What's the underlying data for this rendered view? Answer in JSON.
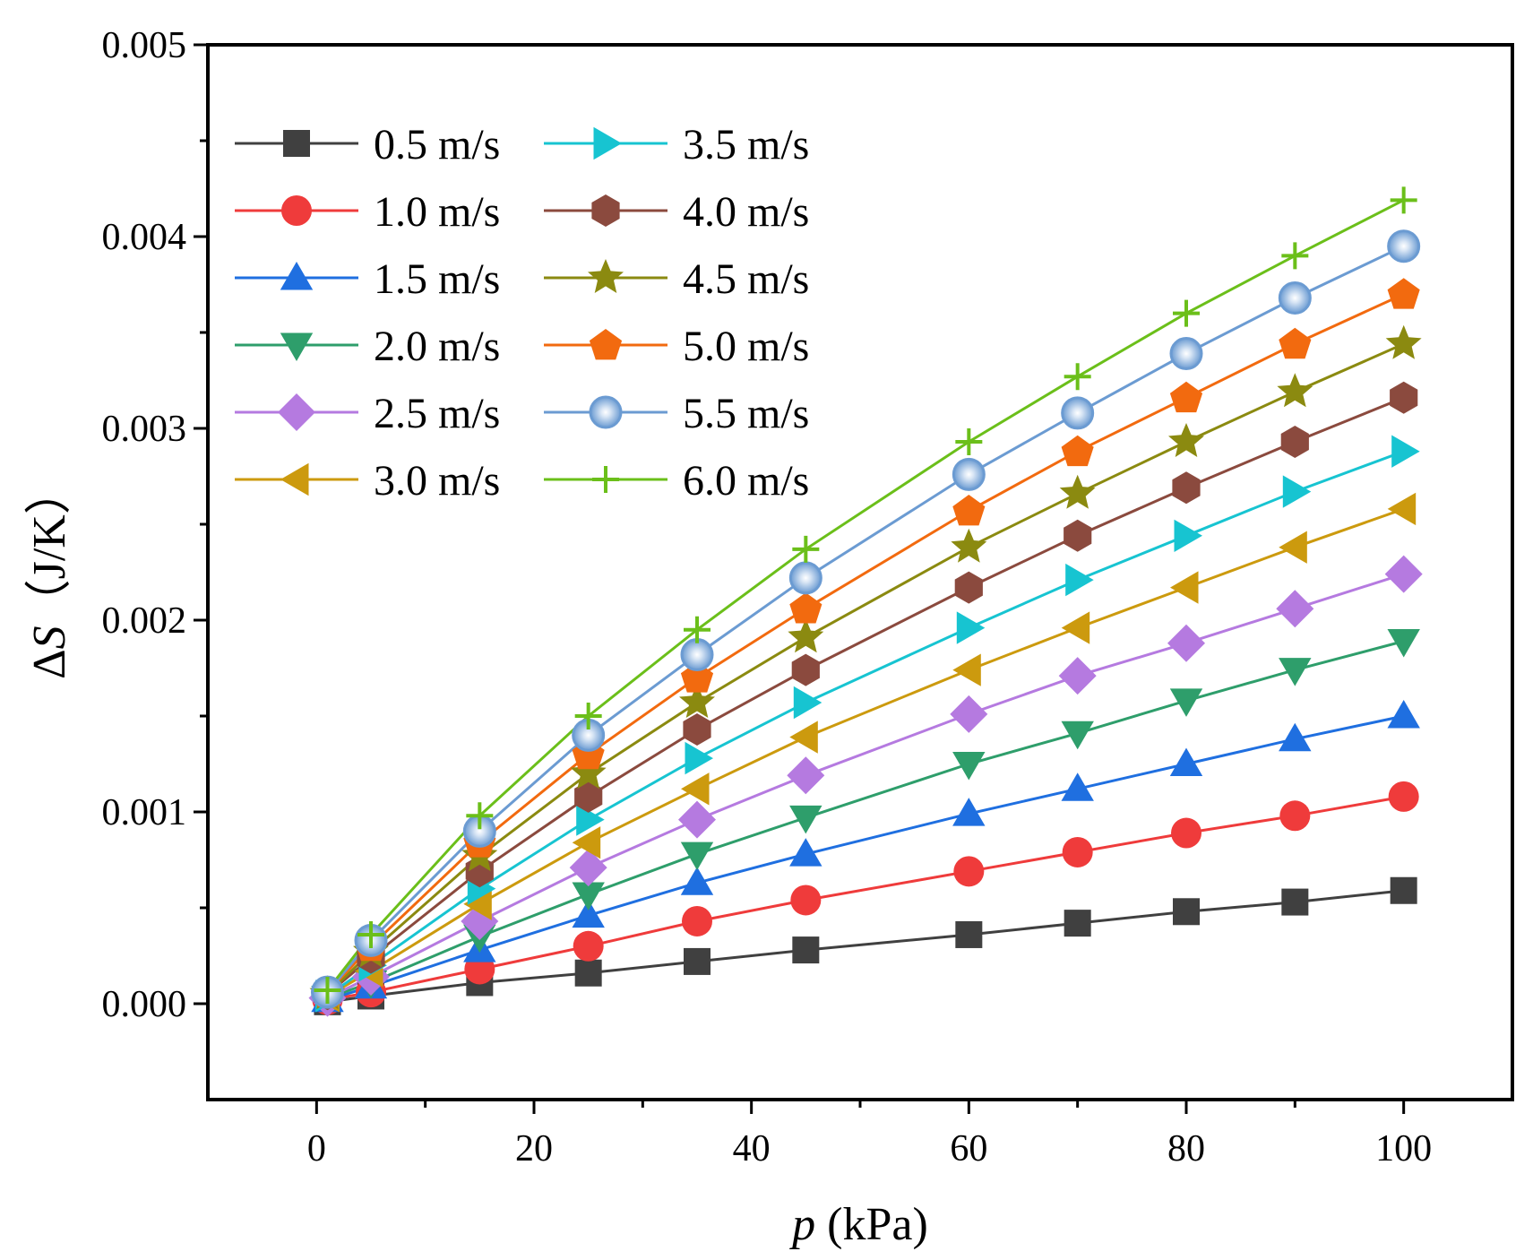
{
  "chart_data": {
    "type": "line",
    "title": "",
    "xlabel": "p (kPa)",
    "xlabel_var": "p",
    "xlabel_unit": " (kPa)",
    "ylabel": "ΔS（J/K）",
    "ylabel_delta": "Δ",
    "ylabel_var": "S",
    "ylabel_unit": "（J/K）",
    "xlim": [
      -10,
      110
    ],
    "ylim": [
      -0.0005,
      0.005
    ],
    "xticks": [
      0,
      20,
      40,
      60,
      80,
      100
    ],
    "xtick_labels": [
      "0",
      "20",
      "40",
      "60",
      "80",
      "100"
    ],
    "yticks": [
      0,
      0.001,
      0.002,
      0.003,
      0.004,
      0.005
    ],
    "ytick_labels": [
      "0.000",
      "0.001",
      "0.002",
      "0.003",
      "0.004",
      "0.005"
    ],
    "grid": false,
    "legend_position": "top-left",
    "x": [
      1,
      5,
      15,
      25,
      35,
      45,
      60,
      70,
      80,
      90,
      100
    ],
    "series": [
      {
        "name": "0.5 m/s",
        "color": "#404040",
        "marker": "square",
        "values": [
          1e-05,
          4e-05,
          0.00011,
          0.00016,
          0.00022,
          0.00028,
          0.00036,
          0.00042,
          0.00048,
          0.00053,
          0.00059
        ]
      },
      {
        "name": "1.0 m/s",
        "color": "#ef3b3b",
        "marker": "circle",
        "values": [
          2e-05,
          6e-05,
          0.00018,
          0.0003,
          0.00043,
          0.00054,
          0.00069,
          0.00079,
          0.00089,
          0.00098,
          0.00108
        ]
      },
      {
        "name": "1.5 m/s",
        "color": "#1f6fe0",
        "marker": "triangle-up",
        "values": [
          2e-05,
          9e-05,
          0.00028,
          0.00046,
          0.00063,
          0.00078,
          0.00099,
          0.00112,
          0.00125,
          0.00138,
          0.0015
        ]
      },
      {
        "name": "2.0 m/s",
        "color": "#2e9e6b",
        "marker": "triangle-down",
        "values": [
          3e-05,
          0.00011,
          0.00035,
          0.00057,
          0.00078,
          0.00097,
          0.00125,
          0.00141,
          0.00158,
          0.00174,
          0.00189
        ]
      },
      {
        "name": "2.5 m/s",
        "color": "#b57ae0",
        "marker": "diamond",
        "values": [
          3e-05,
          0.00014,
          0.00043,
          0.00071,
          0.00096,
          0.00119,
          0.00151,
          0.00171,
          0.00188,
          0.00206,
          0.00224
        ]
      },
      {
        "name": "3.0 m/s",
        "color": "#cc9a0e",
        "marker": "triangle-left",
        "values": [
          4e-05,
          0.00017,
          0.00052,
          0.00084,
          0.00112,
          0.00139,
          0.00174,
          0.00196,
          0.00217,
          0.00238,
          0.00258
        ]
      },
      {
        "name": "3.5 m/s",
        "color": "#17c4d1",
        "marker": "triangle-right",
        "values": [
          4e-05,
          0.0002,
          0.0006,
          0.00096,
          0.00128,
          0.00157,
          0.00196,
          0.00221,
          0.00244,
          0.00267,
          0.00288
        ]
      },
      {
        "name": "4.0 m/s",
        "color": "#8b4a3e",
        "marker": "hexagon",
        "values": [
          5e-05,
          0.00024,
          0.00069,
          0.00108,
          0.00143,
          0.00174,
          0.00217,
          0.00244,
          0.00269,
          0.00293,
          0.00316
        ]
      },
      {
        "name": "4.5 m/s",
        "color": "#8b8a10",
        "marker": "star",
        "values": [
          5e-05,
          0.00027,
          0.00077,
          0.0012,
          0.00157,
          0.00191,
          0.00238,
          0.00266,
          0.00293,
          0.00319,
          0.00344
        ]
      },
      {
        "name": "5.0 m/s",
        "color": "#f26a0f",
        "marker": "pentagon",
        "values": [
          6e-05,
          0.0003,
          0.00084,
          0.0013,
          0.0017,
          0.00206,
          0.00257,
          0.00288,
          0.00316,
          0.00344,
          0.0037
        ]
      },
      {
        "name": "5.5 m/s",
        "color": "#6b9bd2",
        "marker": "sphere",
        "values": [
          6e-05,
          0.00033,
          0.0009,
          0.0014,
          0.00182,
          0.00222,
          0.00276,
          0.00308,
          0.00339,
          0.00368,
          0.00395
        ]
      },
      {
        "name": "6.0 m/s",
        "color": "#6bbf1a",
        "marker": "plus",
        "values": [
          7e-05,
          0.00036,
          0.00098,
          0.0015,
          0.00195,
          0.00237,
          0.00293,
          0.00327,
          0.0036,
          0.0039,
          0.00419
        ]
      }
    ]
  }
}
